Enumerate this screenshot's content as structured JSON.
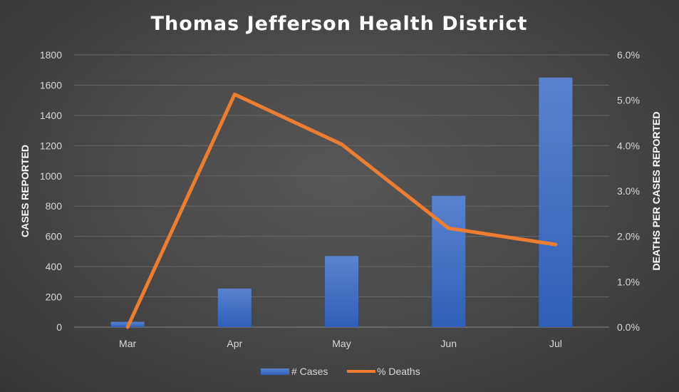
{
  "chart_data": {
    "type": "bar+line",
    "title": "Thomas Jefferson Health District",
    "categories": [
      "Mar",
      "Apr",
      "May",
      "Jun",
      "Jul"
    ],
    "series": [
      {
        "name": "# Cases",
        "type": "bar",
        "axis": "left",
        "color": "#4472c4",
        "values": [
          35,
          255,
          470,
          868,
          1650
        ]
      },
      {
        "name": "% Deaths",
        "type": "line",
        "axis": "right",
        "color": "#ed7d31",
        "values": [
          0.0,
          5.13,
          4.03,
          2.18,
          1.82
        ]
      }
    ],
    "y_left": {
      "label": "CASES REPORTED",
      "range": [
        0,
        1800
      ],
      "ticks": [
        "0",
        "200",
        "400",
        "600",
        "800",
        "1000",
        "1200",
        "1400",
        "1600",
        "1800"
      ]
    },
    "y_right": {
      "label": "DEATHS PER CASES REPORTED",
      "range": [
        0,
        6.0
      ],
      "ticks": [
        "0.0%",
        "1.0%",
        "2.0%",
        "3.0%",
        "4.0%",
        "5.0%",
        "6.0%"
      ]
    },
    "grid": true,
    "legend": "bottom"
  }
}
